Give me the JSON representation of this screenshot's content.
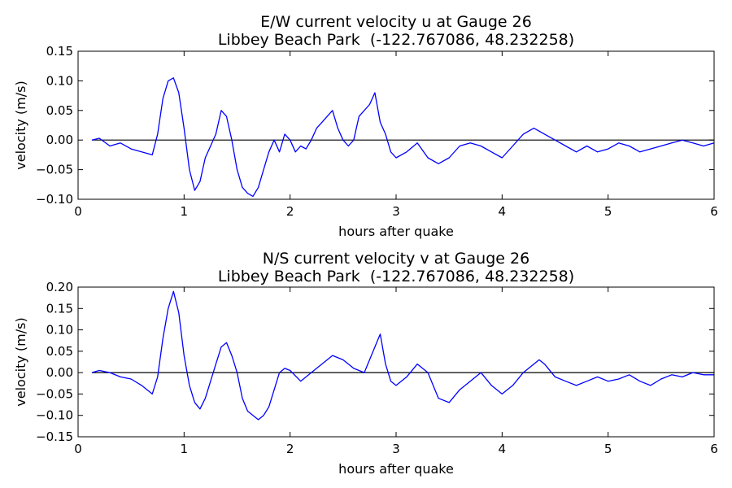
{
  "chart_data": [
    {
      "type": "line",
      "title": "E/W current velocity u at Gauge 26",
      "subtitle": "Libbey Beach Park  (-122.767086, 48.232258)",
      "xlabel": "hours after quake",
      "ylabel": "velocity (m/s)",
      "xlim": [
        0,
        6
      ],
      "ylim": [
        -0.1,
        0.15
      ],
      "xticks": [
        "0",
        "1",
        "2",
        "3",
        "4",
        "5",
        "6"
      ],
      "xtick_values": [
        0,
        1,
        2,
        3,
        4,
        5,
        6
      ],
      "yticks": [
        "−0.10",
        "−0.05",
        "0.00",
        "0.05",
        "0.10",
        "0.15"
      ],
      "ytick_values": [
        -0.1,
        -0.05,
        0.0,
        0.05,
        0.1,
        0.15
      ],
      "grid": false,
      "reference_line_y": 0,
      "color": "#0000ff",
      "series": [
        {
          "x": [
            0.13,
            0.2,
            0.3,
            0.4,
            0.5,
            0.6,
            0.7,
            0.75,
            0.8,
            0.85,
            0.9,
            0.95,
            1.0,
            1.05,
            1.1,
            1.15,
            1.2,
            1.25,
            1.3,
            1.35,
            1.4,
            1.45,
            1.5,
            1.55,
            1.6,
            1.65,
            1.7,
            1.75,
            1.8,
            1.85,
            1.9,
            1.95,
            2.0,
            2.05,
            2.1,
            2.15,
            2.2,
            2.25,
            2.3,
            2.35,
            2.4,
            2.45,
            2.5,
            2.55,
            2.6,
            2.65,
            2.7,
            2.75,
            2.8,
            2.85,
            2.9,
            2.95,
            3.0,
            3.1,
            3.2,
            3.3,
            3.4,
            3.5,
            3.6,
            3.7,
            3.8,
            3.9,
            4.0,
            4.1,
            4.2,
            4.3,
            4.4,
            4.5,
            4.6,
            4.7,
            4.8,
            4.9,
            5.0,
            5.1,
            5.2,
            5.3,
            5.4,
            5.5,
            5.6,
            5.7,
            5.8,
            5.9,
            6.0
          ],
          "y": [
            0.0,
            0.003,
            -0.01,
            -0.005,
            -0.015,
            -0.02,
            -0.025,
            0.01,
            0.07,
            0.1,
            0.105,
            0.08,
            0.02,
            -0.05,
            -0.085,
            -0.07,
            -0.03,
            -0.01,
            0.01,
            0.05,
            0.04,
            0.0,
            -0.05,
            -0.08,
            -0.09,
            -0.095,
            -0.08,
            -0.05,
            -0.02,
            0.0,
            -0.02,
            0.01,
            0.0,
            -0.02,
            -0.01,
            -0.015,
            0.0,
            0.02,
            0.03,
            0.04,
            0.05,
            0.02,
            0.0,
            -0.01,
            0.0,
            0.04,
            0.05,
            0.06,
            0.08,
            0.03,
            0.01,
            -0.02,
            -0.03,
            -0.02,
            -0.005,
            -0.03,
            -0.04,
            -0.03,
            -0.01,
            -0.005,
            -0.01,
            -0.02,
            -0.03,
            -0.01,
            0.01,
            0.02,
            0.01,
            0.0,
            -0.01,
            -0.02,
            -0.01,
            -0.02,
            -0.015,
            -0.005,
            -0.01,
            -0.02,
            -0.015,
            -0.01,
            -0.005,
            0.0,
            -0.005,
            -0.01,
            -0.005
          ]
        }
      ]
    },
    {
      "type": "line",
      "title": "N/S current velocity v at Gauge 26",
      "subtitle": "Libbey Beach Park  (-122.767086, 48.232258)",
      "xlabel": "hours after quake",
      "ylabel": "velocity (m/s)",
      "xlim": [
        0,
        6
      ],
      "ylim": [
        -0.15,
        0.2
      ],
      "xticks": [
        "0",
        "1",
        "2",
        "3",
        "4",
        "5",
        "6"
      ],
      "xtick_values": [
        0,
        1,
        2,
        3,
        4,
        5,
        6
      ],
      "yticks": [
        "−0.15",
        "−0.10",
        "−0.05",
        "0.00",
        "0.05",
        "0.10",
        "0.15",
        "0.20"
      ],
      "ytick_values": [
        -0.15,
        -0.1,
        -0.05,
        0.0,
        0.05,
        0.1,
        0.15,
        0.2
      ],
      "grid": false,
      "reference_line_y": 0,
      "color": "#0000ff",
      "series": [
        {
          "x": [
            0.13,
            0.2,
            0.3,
            0.4,
            0.5,
            0.6,
            0.7,
            0.75,
            0.8,
            0.85,
            0.9,
            0.95,
            1.0,
            1.05,
            1.1,
            1.15,
            1.2,
            1.25,
            1.3,
            1.35,
            1.4,
            1.45,
            1.5,
            1.55,
            1.6,
            1.65,
            1.7,
            1.75,
            1.8,
            1.85,
            1.9,
            1.95,
            2.0,
            2.1,
            2.2,
            2.3,
            2.4,
            2.5,
            2.6,
            2.7,
            2.8,
            2.85,
            2.9,
            2.95,
            3.0,
            3.1,
            3.2,
            3.3,
            3.4,
            3.5,
            3.6,
            3.7,
            3.8,
            3.9,
            4.0,
            4.1,
            4.2,
            4.3,
            4.35,
            4.4,
            4.5,
            4.6,
            4.7,
            4.8,
            4.9,
            5.0,
            5.1,
            5.2,
            5.3,
            5.4,
            5.5,
            5.6,
            5.7,
            5.8,
            5.9,
            6.0
          ],
          "y": [
            0.0,
            0.005,
            0.0,
            -0.01,
            -0.015,
            -0.03,
            -0.05,
            -0.01,
            0.08,
            0.15,
            0.19,
            0.14,
            0.04,
            -0.03,
            -0.07,
            -0.085,
            -0.06,
            -0.02,
            0.02,
            0.06,
            0.07,
            0.04,
            0.0,
            -0.06,
            -0.09,
            -0.1,
            -0.11,
            -0.1,
            -0.08,
            -0.04,
            0.0,
            0.01,
            0.005,
            -0.02,
            0.0,
            0.02,
            0.04,
            0.03,
            0.01,
            0.0,
            0.06,
            0.09,
            0.02,
            -0.02,
            -0.03,
            -0.01,
            0.02,
            0.0,
            -0.06,
            -0.07,
            -0.04,
            -0.02,
            0.0,
            -0.03,
            -0.05,
            -0.03,
            0.0,
            0.02,
            0.03,
            0.02,
            -0.01,
            -0.02,
            -0.03,
            -0.02,
            -0.01,
            -0.02,
            -0.015,
            -0.005,
            -0.02,
            -0.03,
            -0.015,
            -0.005,
            -0.01,
            0.0,
            -0.005,
            -0.005
          ]
        }
      ]
    }
  ]
}
